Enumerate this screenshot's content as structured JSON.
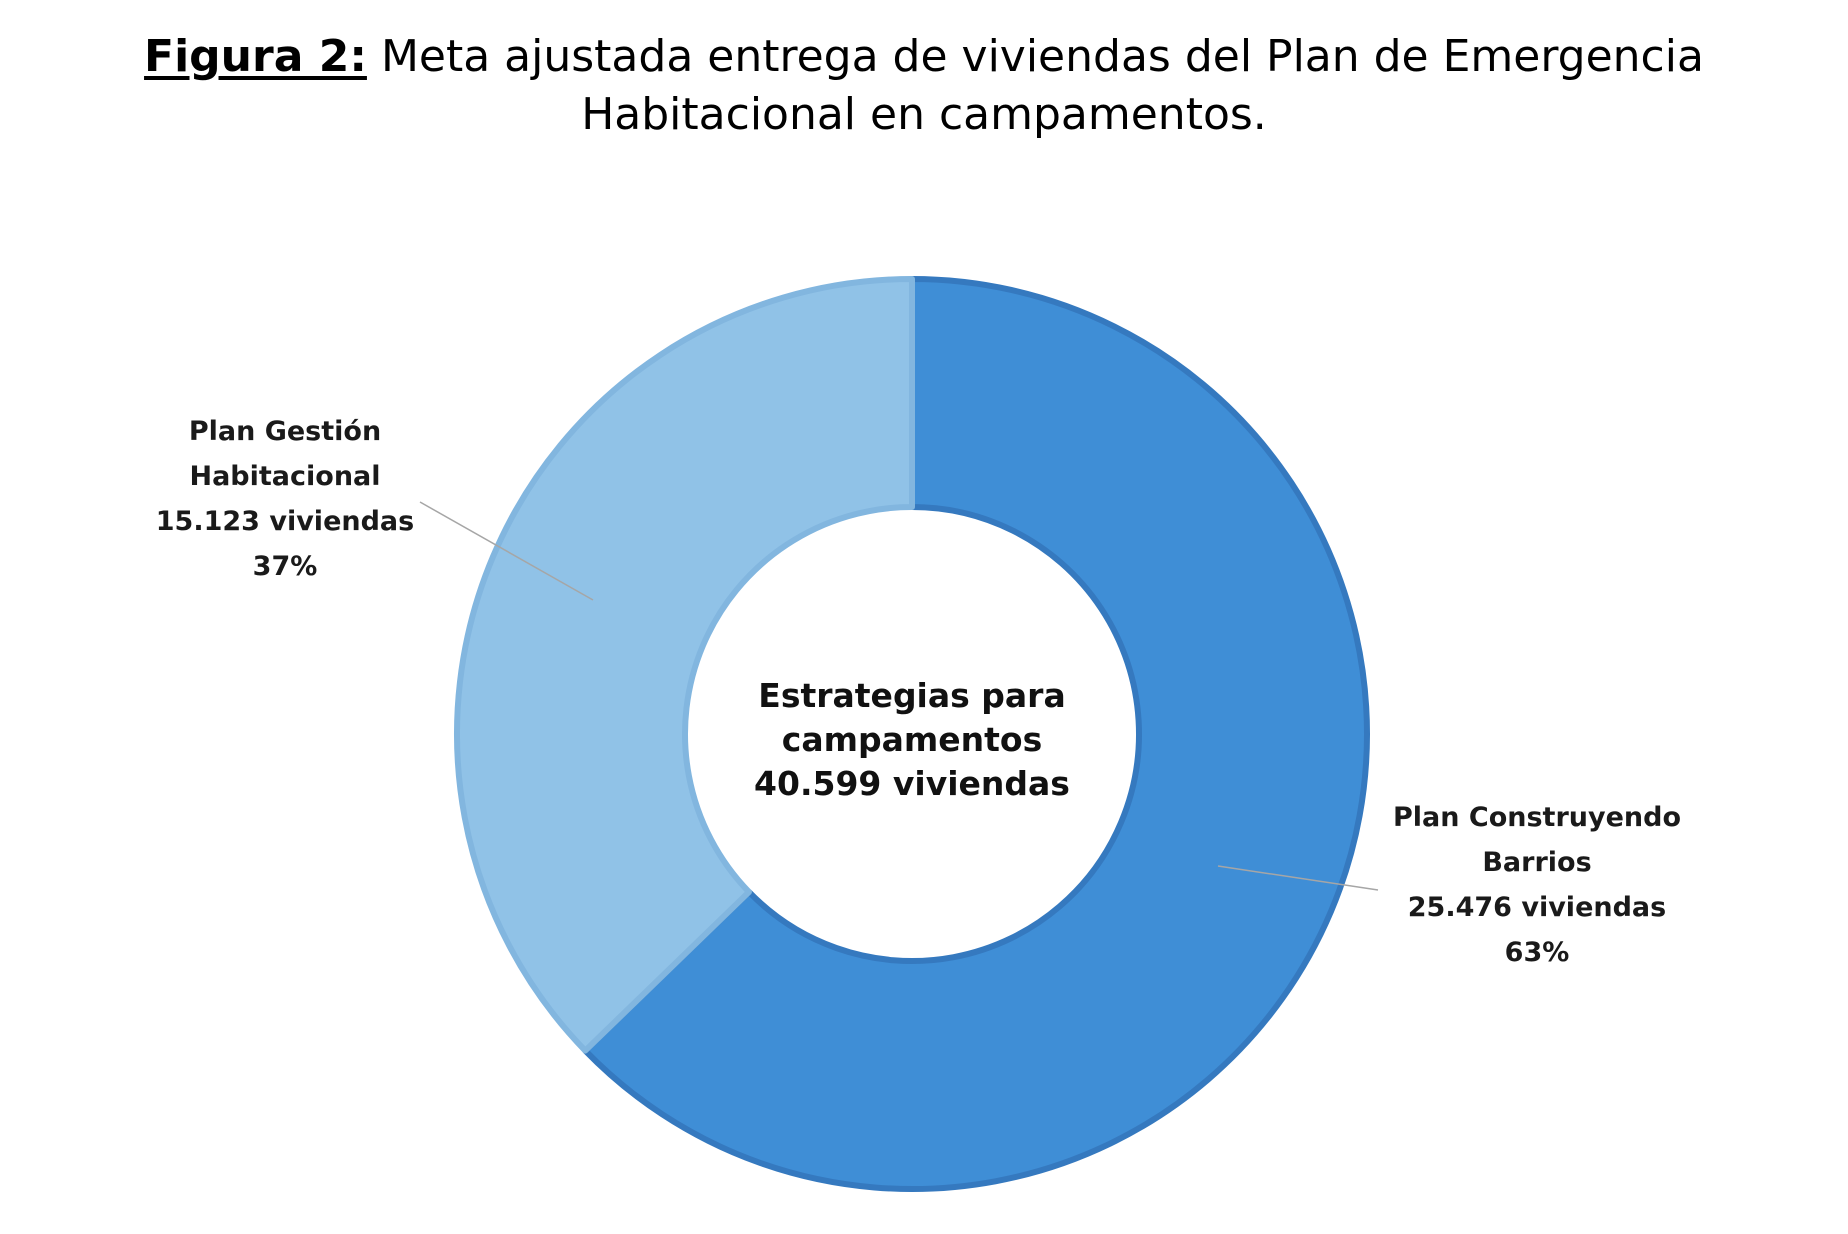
{
  "figure": {
    "label": "Figura 2:",
    "title": "Meta ajustada entrega de viviendas del Plan de Emergencia Habitacional en campamentos."
  },
  "chart_data": {
    "type": "pie",
    "donut": true,
    "center_label": [
      "Estrategias para",
      "campamentos",
      "40.599 viviendas"
    ],
    "total": 40599,
    "start_angle_deg": 0,
    "direction": "clockwise",
    "slices": [
      {
        "name": "Plan Construyendo Barrios",
        "value": 25476,
        "percent": 63,
        "color": "#3f8ed6",
        "label_lines": [
          "Plan Construyendo",
          "Barrios",
          "25.476 viviendas",
          "63%"
        ]
      },
      {
        "name": "Plan Gestión Habitacional",
        "value": 15123,
        "percent": 37,
        "color": "#90c2e7",
        "label_lines": [
          "Plan Gestión",
          "Habitacional",
          "15.123 viviendas",
          "37%"
        ]
      }
    ],
    "legend": "none"
  }
}
